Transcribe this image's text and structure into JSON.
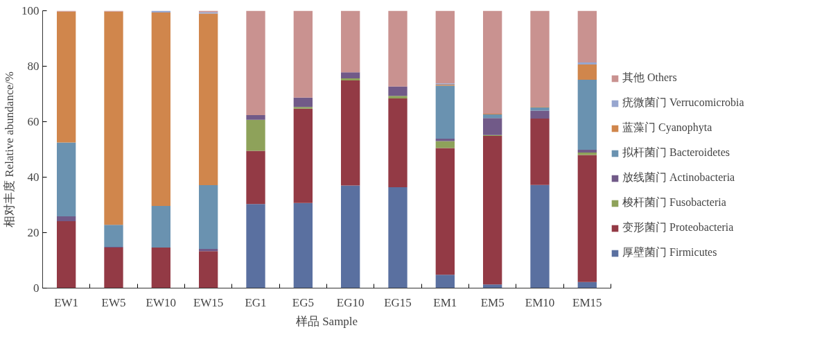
{
  "chart_data": {
    "type": "bar",
    "stacked": true,
    "xlabel": "样品 Sample",
    "ylabel": "相对丰度 Relative abundance/%",
    "categories": [
      "EW1",
      "EW5",
      "EW10",
      "EW15",
      "EG1",
      "EG5",
      "EG10",
      "EG15",
      "EM1",
      "EM5",
      "EM10",
      "EM15"
    ],
    "ylim": [
      0,
      100
    ],
    "yticks": [
      0,
      20,
      40,
      60,
      80,
      100
    ],
    "grid": false,
    "legend": "right",
    "series": [
      {
        "name": "厚壁菌门 Firmicutes",
        "color": "#5a70a0",
        "values": [
          0,
          0,
          0,
          0,
          30.3,
          30.7,
          37.0,
          36.4,
          4.8,
          1.3,
          37.2,
          2.2
        ]
      },
      {
        "name": "变形菌门 Proteobacteria",
        "color": "#933a45",
        "values": [
          24.1,
          14.6,
          14.6,
          13.3,
          19.2,
          34.0,
          37.9,
          32.0,
          45.7,
          53.6,
          23.9,
          45.8
        ]
      },
      {
        "name": "梭杆菌门 Fusobacteria",
        "color": "#8ea25a",
        "values": [
          0,
          0,
          0,
          0,
          11.2,
          0.6,
          0.7,
          0.9,
          2.5,
          0.3,
          0,
          0.9
        ]
      },
      {
        "name": "放线菌门 Actinobacteria",
        "color": "#715a88",
        "values": [
          1.8,
          0.3,
          0,
          0.8,
          1.7,
          3.4,
          2.2,
          3.4,
          0.9,
          6.1,
          2.9,
          1.0
        ]
      },
      {
        "name": "拟杆菌门 Bacteroidetes",
        "color": "#6a92b0",
        "values": [
          26.6,
          7.9,
          15.0,
          23.0,
          0,
          0,
          0,
          0,
          19.1,
          1.3,
          1.2,
          25.2
        ]
      },
      {
        "name": "蓝藻门 Cyanophyta",
        "color": "#d0864c",
        "values": [
          47.2,
          76.9,
          69.8,
          61.9,
          0,
          0,
          0,
          0,
          0.4,
          0.3,
          0.2,
          5.5
        ]
      },
      {
        "name": "疣微菌门 Verrucomicrobia",
        "color": "#97a6cf",
        "values": [
          0,
          0,
          0.6,
          0.5,
          0,
          0,
          0,
          0,
          0.4,
          0,
          0,
          0.8
        ]
      },
      {
        "name": "其他 Others",
        "color": "#c99290",
        "values": [
          0.3,
          0.3,
          0,
          0.5,
          37.6,
          31.3,
          22.2,
          27.3,
          26.2,
          37.1,
          34.6,
          18.6
        ]
      }
    ]
  }
}
